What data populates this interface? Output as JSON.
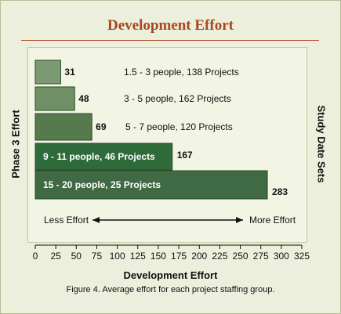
{
  "chart_data": {
    "type": "bar",
    "orientation": "horizontal",
    "title": "Development Effort",
    "xlabel": "Development Effort",
    "ylabel_left": "Phase 3 Effort",
    "ylabel_right": "Study Date Sets",
    "xlim": [
      0,
      325
    ],
    "xticks": [
      "0",
      "25",
      "50",
      "75",
      "100",
      "125",
      "150",
      "175",
      "200",
      "225",
      "250",
      "275",
      "300",
      "325"
    ],
    "grid": false,
    "bars": [
      {
        "category": "1.5 - 3  people, 138 Projects",
        "value": 31,
        "value_label": "31",
        "label_position": "right",
        "color": "#7b9a72"
      },
      {
        "category": "3 - 5  people, 162 Projects",
        "value": 48,
        "value_label": "48",
        "label_position": "right",
        "color": "#6f9065"
      },
      {
        "category": "5 - 7  people, 120 Projects",
        "value": 69,
        "value_label": "69",
        "label_position": "right",
        "color": "#557a4c"
      },
      {
        "category": "9 - 11  people, 46 Projects",
        "value": 167,
        "value_label": "167",
        "label_position": "inside",
        "color": "#2e6a3a"
      },
      {
        "category": "15 - 20  people, 25 Projects",
        "value": 283,
        "value_label": "283",
        "label_position": "inside",
        "color": "#3f6a44"
      }
    ],
    "annotations": {
      "less_effort": "Less Effort",
      "more_effort": "More Effort"
    }
  },
  "caption": "Figure 4.  Average effort for each project staffing group.",
  "colors": {
    "title": "#a8461e",
    "background": "#ecefdc",
    "text": "#111111"
  }
}
